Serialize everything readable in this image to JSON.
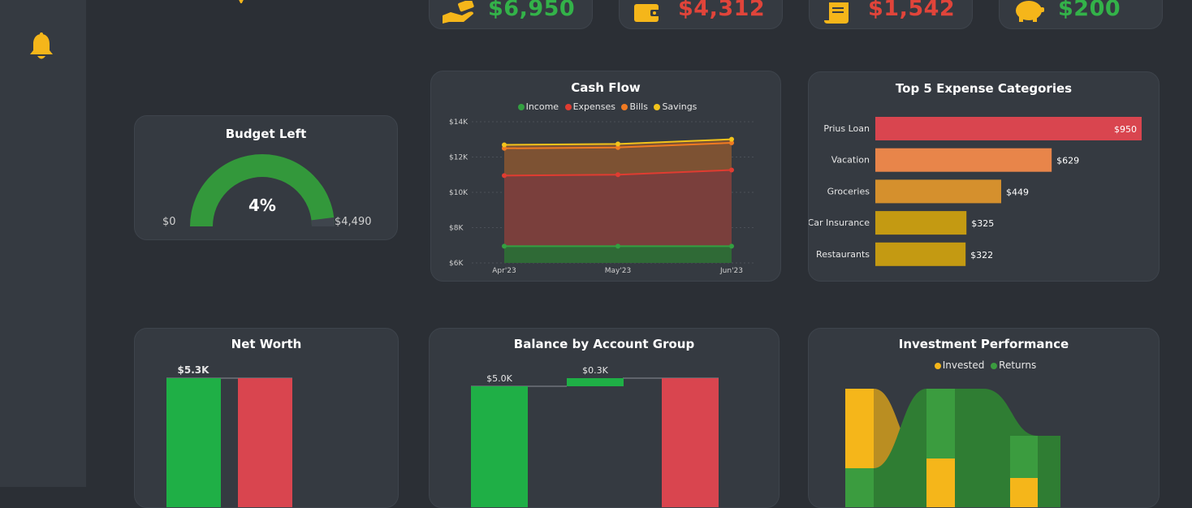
{
  "kpis": [
    {
      "value": "$6,950",
      "icon": "hand-money-icon",
      "color": "#33b249"
    },
    {
      "value": "$4,312",
      "icon": "wallet-icon",
      "color": "#e0443a"
    },
    {
      "value": "$1,542",
      "icon": "receipt-icon",
      "color": "#e0443a"
    },
    {
      "value": "$200",
      "icon": "piggy-bank-icon",
      "color": "#33b249"
    }
  ],
  "sidebar": {
    "icon": "bell-icon"
  },
  "budget": {
    "title": "Budget Left",
    "value": "4%",
    "fraction": 0.04,
    "min_label": "$0",
    "max_label": "$4,490"
  },
  "cashflow": {
    "title": "Cash Flow",
    "legend": [
      "Income",
      "Expenses",
      "Bills",
      "Savings"
    ],
    "chart_data": {
      "type": "area",
      "x": [
        "Apr'23",
        "May'23",
        "Jun'23"
      ],
      "yticks": [
        "$6K",
        "$8K",
        "$10K",
        "$12K",
        "$14K"
      ],
      "ylim": [
        6000,
        14000
      ],
      "series": [
        {
          "name": "Income",
          "values": [
            6950,
            6950,
            6950
          ],
          "color": "#33a041"
        },
        {
          "name": "Expenses",
          "values": [
            10950,
            11000,
            11262
          ],
          "color": "#e03c31"
        },
        {
          "name": "Bills",
          "values": [
            12492,
            12542,
            12804
          ],
          "color": "#f07a22"
        },
        {
          "name": "Savings",
          "values": [
            12692,
            12742,
            13004
          ],
          "color": "#f2c31b"
        }
      ]
    }
  },
  "expenses": {
    "title": "Top 5 Expense Categories",
    "chart_data": {
      "type": "bar",
      "orientation": "horizontal",
      "categories": [
        "Prius Loan",
        "Vacation",
        "Groceries",
        "Car Insurance",
        "Restaurants"
      ],
      "values": [
        950,
        629,
        449,
        325,
        322
      ],
      "labels": [
        "$950",
        "$629",
        "$449",
        "$325",
        "$322"
      ],
      "colors": [
        "#d9454f",
        "#e8854a",
        "#d5902d",
        "#c49a12",
        "#c49a12"
      ]
    }
  },
  "networth": {
    "title": "Net Worth",
    "chart_data": {
      "type": "bar",
      "label": "$5.3K",
      "colors": [
        "#1faf46",
        "#d9454f"
      ]
    }
  },
  "balance": {
    "title": "Balance by Account Group",
    "chart_data": {
      "type": "bar",
      "labels": [
        "$5.0K",
        "$0.3K"
      ],
      "colors": [
        "#1faf46",
        "#1faf46",
        "#d9454f"
      ]
    }
  },
  "investment": {
    "title": "Investment Performance",
    "legend": [
      "Invested",
      "Returns"
    ],
    "colors": {
      "invested": "#f5b61a",
      "returns": "#3b9c3f"
    }
  }
}
